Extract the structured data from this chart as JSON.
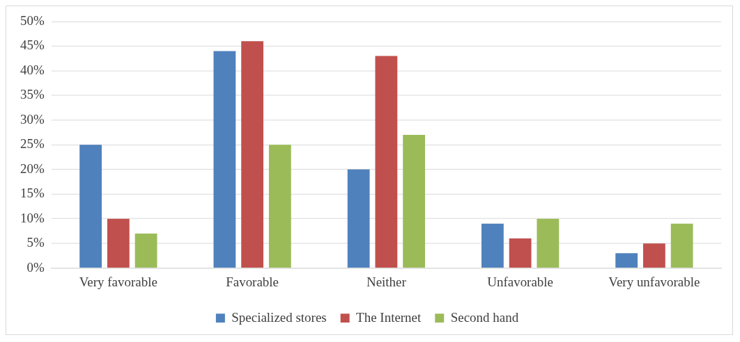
{
  "chart_data": {
    "type": "bar",
    "categories": [
      "Very favorable",
      "Favorable",
      "Neither",
      "Unfavorable",
      "Very unfavorable"
    ],
    "series": [
      {
        "name": "Specialized stores",
        "color": "#4f81bd",
        "values": [
          25,
          44,
          20,
          9,
          3
        ]
      },
      {
        "name": "The Internet",
        "color": "#c0504d",
        "values": [
          10,
          46,
          43,
          6,
          5
        ]
      },
      {
        "name": "Second hand",
        "color": "#9bbb59",
        "values": [
          7,
          25,
          27,
          10,
          9
        ]
      }
    ],
    "ylim": [
      0,
      50
    ],
    "yticks": [
      {
        "value": 0,
        "label": "0%"
      },
      {
        "value": 5,
        "label": "5%"
      },
      {
        "value": 10,
        "label": "10%"
      },
      {
        "value": 15,
        "label": "15%"
      },
      {
        "value": 20,
        "label": "20%"
      },
      {
        "value": 25,
        "label": "25%"
      },
      {
        "value": 30,
        "label": "30%"
      },
      {
        "value": 35,
        "label": "35%"
      },
      {
        "value": 40,
        "label": "40%"
      },
      {
        "value": 45,
        "label": "45%"
      },
      {
        "value": 50,
        "label": "50%"
      }
    ],
    "grid": "y",
    "legend": "bottom"
  }
}
